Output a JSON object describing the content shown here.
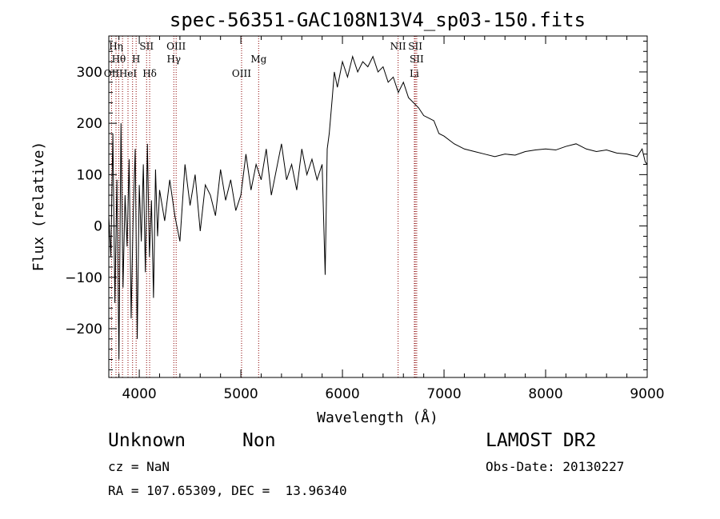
{
  "chart_data": {
    "type": "line",
    "title": "spec-56351-GAC108N13V4_sp03-150.fits",
    "xlabel": "Wavelength (Å)",
    "ylabel": "Flux (relative)",
    "xlim": [
      3700,
      9000
    ],
    "ylim": [
      -295,
      370
    ],
    "x_ticks": [
      4000,
      5000,
      6000,
      7000,
      8000,
      9000
    ],
    "y_ticks": [
      -200,
      -100,
      0,
      100,
      200,
      300
    ],
    "grid": false,
    "colors": {
      "spectrum": "#000000",
      "line_markers": "#8b0000",
      "frame": "#000000"
    },
    "series": [
      {
        "points": [
          [
            3700,
            20
          ],
          [
            3720,
            -60
          ],
          [
            3740,
            180
          ],
          [
            3760,
            -150
          ],
          [
            3780,
            90
          ],
          [
            3800,
            -260
          ],
          [
            3820,
            200
          ],
          [
            3840,
            -120
          ],
          [
            3860,
            60
          ],
          [
            3880,
            -40
          ],
          [
            3900,
            130
          ],
          [
            3920,
            -180
          ],
          [
            3940,
            20
          ],
          [
            3960,
            150
          ],
          [
            3980,
            -220
          ],
          [
            4000,
            80
          ],
          [
            4020,
            -30
          ],
          [
            4040,
            120
          ],
          [
            4060,
            -90
          ],
          [
            4080,
            160
          ],
          [
            4100,
            -60
          ],
          [
            4120,
            50
          ],
          [
            4140,
            -140
          ],
          [
            4160,
            110
          ],
          [
            4180,
            -20
          ],
          [
            4200,
            70
          ],
          [
            4250,
            10
          ],
          [
            4300,
            90
          ],
          [
            4350,
            20
          ],
          [
            4400,
            -30
          ],
          [
            4450,
            120
          ],
          [
            4500,
            40
          ],
          [
            4550,
            100
          ],
          [
            4600,
            -10
          ],
          [
            4650,
            80
          ],
          [
            4700,
            60
          ],
          [
            4750,
            20
          ],
          [
            4800,
            110
          ],
          [
            4850,
            50
          ],
          [
            4900,
            90
          ],
          [
            4950,
            30
          ],
          [
            5000,
            60
          ],
          [
            5050,
            140
          ],
          [
            5100,
            70
          ],
          [
            5150,
            120
          ],
          [
            5200,
            90
          ],
          [
            5250,
            150
          ],
          [
            5300,
            60
          ],
          [
            5350,
            110
          ],
          [
            5400,
            160
          ],
          [
            5450,
            90
          ],
          [
            5500,
            120
          ],
          [
            5550,
            70
          ],
          [
            5600,
            150
          ],
          [
            5650,
            100
          ],
          [
            5700,
            130
          ],
          [
            5750,
            90
          ],
          [
            5800,
            120
          ],
          [
            5830,
            -95
          ],
          [
            5850,
            150
          ],
          [
            5870,
            180
          ],
          [
            5900,
            250
          ],
          [
            5920,
            300
          ],
          [
            5950,
            270
          ],
          [
            6000,
            320
          ],
          [
            6050,
            290
          ],
          [
            6100,
            330
          ],
          [
            6150,
            300
          ],
          [
            6200,
            320
          ],
          [
            6250,
            310
          ],
          [
            6300,
            330
          ],
          [
            6350,
            300
          ],
          [
            6400,
            310
          ],
          [
            6450,
            280
          ],
          [
            6500,
            290
          ],
          [
            6550,
            260
          ],
          [
            6600,
            280
          ],
          [
            6650,
            250
          ],
          [
            6700,
            240
          ],
          [
            6750,
            230
          ],
          [
            6800,
            215
          ],
          [
            6850,
            210
          ],
          [
            6900,
            205
          ],
          [
            6950,
            180
          ],
          [
            7000,
            175
          ],
          [
            7100,
            160
          ],
          [
            7200,
            150
          ],
          [
            7300,
            145
          ],
          [
            7400,
            140
          ],
          [
            7500,
            135
          ],
          [
            7600,
            140
          ],
          [
            7700,
            138
          ],
          [
            7800,
            145
          ],
          [
            7900,
            148
          ],
          [
            8000,
            150
          ],
          [
            8100,
            148
          ],
          [
            8200,
            155
          ],
          [
            8300,
            160
          ],
          [
            8400,
            150
          ],
          [
            8500,
            145
          ],
          [
            8600,
            148
          ],
          [
            8700,
            142
          ],
          [
            8800,
            140
          ],
          [
            8900,
            135
          ],
          [
            8950,
            150
          ],
          [
            8980,
            125
          ],
          [
            9000,
            120
          ]
        ]
      }
    ],
    "line_markers": [
      {
        "x": 3727,
        "label": "OII",
        "row": 3
      },
      {
        "x": 3771,
        "label": "Hη",
        "row": 1
      },
      {
        "x": 3798,
        "label": "Hθ",
        "row": 2
      },
      {
        "x": 3835,
        "label": "",
        "row": 0
      },
      {
        "x": 3889,
        "label": "HeI",
        "row": 3
      },
      {
        "x": 3934,
        "label": "",
        "row": 0
      },
      {
        "x": 3969,
        "label": "H",
        "row": 2
      },
      {
        "x": 4072,
        "label": "SII",
        "row": 1
      },
      {
        "x": 4102,
        "label": "Hδ",
        "row": 3
      },
      {
        "x": 4340,
        "label": "Hγ",
        "row": 2
      },
      {
        "x": 4363,
        "label": "OIII",
        "row": 1
      },
      {
        "x": 5007,
        "label": "OIII",
        "row": 3
      },
      {
        "x": 5175,
        "label": "Mg",
        "row": 2
      },
      {
        "x": 6548,
        "label": "NII",
        "row": 1
      },
      {
        "x": 6708,
        "label": "Li",
        "row": 3
      },
      {
        "x": 6717,
        "label": "SII",
        "row": 1
      },
      {
        "x": 6731,
        "label": "SII",
        "row": 2
      }
    ]
  },
  "info": {
    "class_label": "Unknown",
    "subclass_label": "Non",
    "survey": "LAMOST DR2",
    "redshift": "cz = NaN",
    "obs_date": "Obs-Date: 20130227",
    "coordinates": "RA = 107.65309, DEC =  13.96340"
  }
}
